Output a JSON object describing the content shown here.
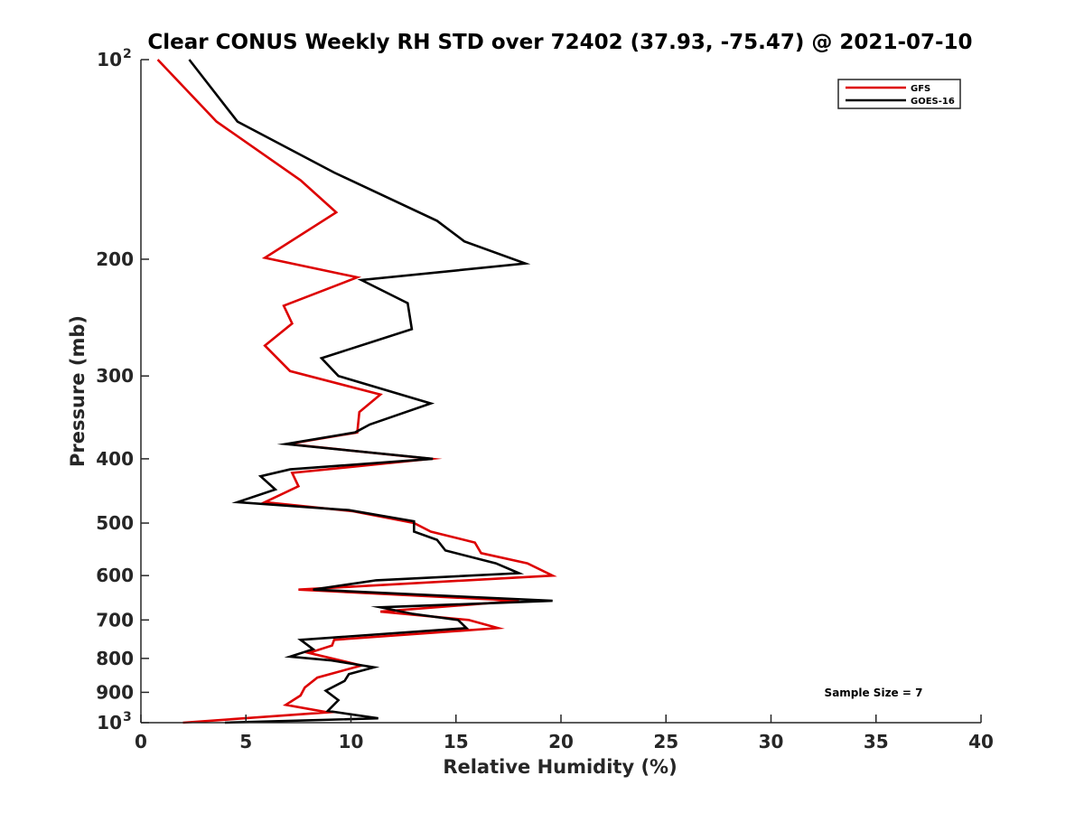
{
  "chart_data": {
    "type": "line",
    "title": "Clear CONUS Weekly RH STD over 72402 (37.93, -75.47) @ 2021-07-10",
    "xlabel": "Relative Humidity (%)",
    "ylabel": "Pressure (mb)",
    "xlim": [
      0,
      40
    ],
    "ylim": [
      100,
      1000
    ],
    "yscale": "log",
    "y_reversed": true,
    "x_ticks": [
      0,
      5,
      10,
      15,
      20,
      25,
      30,
      35,
      40
    ],
    "x_tick_labels": [
      "0",
      "5",
      "10",
      "15",
      "20",
      "25",
      "30",
      "35",
      "40"
    ],
    "y_ticks": [
      {
        "value": 100,
        "base": "10",
        "exp": "2"
      },
      {
        "value": 200,
        "label": "200"
      },
      {
        "value": 300,
        "label": "300"
      },
      {
        "value": 400,
        "label": "400"
      },
      {
        "value": 500,
        "label": "500"
      },
      {
        "value": 600,
        "label": "600"
      },
      {
        "value": 700,
        "label": "700"
      },
      {
        "value": 800,
        "label": "800"
      },
      {
        "value": 900,
        "label": "900"
      },
      {
        "value": 1000,
        "base": "10",
        "exp": "3"
      }
    ],
    "legend_position": "top-right",
    "annotation": "Sample Size = 7",
    "series": [
      {
        "name": "GFS",
        "color": "#dd0000",
        "points": [
          [
            0.8,
            100
          ],
          [
            3.6,
            124
          ],
          [
            7.6,
            152
          ],
          [
            9.3,
            170
          ],
          [
            5.9,
            199
          ],
          [
            10.3,
            213
          ],
          [
            6.8,
            235
          ],
          [
            7.2,
            250
          ],
          [
            5.9,
            270
          ],
          [
            7.1,
            295
          ],
          [
            11.4,
            320
          ],
          [
            10.4,
            340
          ],
          [
            10.3,
            365
          ],
          [
            7.0,
            380
          ],
          [
            13.8,
            400
          ],
          [
            7.2,
            420
          ],
          [
            7.5,
            440
          ],
          [
            5.9,
            465
          ],
          [
            10.1,
            480
          ],
          [
            13.0,
            500
          ],
          [
            13.8,
            515
          ],
          [
            15.9,
            535
          ],
          [
            16.2,
            555
          ],
          [
            18.4,
            575
          ],
          [
            19.6,
            600
          ],
          [
            7.5,
            630
          ],
          [
            18.0,
            655
          ],
          [
            11.4,
            680
          ],
          [
            15.6,
            700
          ],
          [
            17.0,
            720
          ],
          [
            9.2,
            750
          ],
          [
            9.1,
            765
          ],
          [
            8.0,
            785
          ],
          [
            10.5,
            820
          ],
          [
            8.4,
            855
          ],
          [
            7.8,
            885
          ],
          [
            7.6,
            910
          ],
          [
            6.9,
            940
          ],
          [
            8.9,
            965
          ],
          [
            2.0,
            1000
          ]
        ]
      },
      {
        "name": "GOES-16",
        "color": "#000000",
        "points": [
          [
            2.3,
            100
          ],
          [
            4.6,
            124
          ],
          [
            9.2,
            148
          ],
          [
            14.1,
            175
          ],
          [
            15.4,
            188
          ],
          [
            18.3,
            203
          ],
          [
            10.5,
            215
          ],
          [
            12.7,
            233
          ],
          [
            12.9,
            255
          ],
          [
            8.6,
            282
          ],
          [
            9.4,
            300
          ],
          [
            13.8,
            330
          ],
          [
            10.9,
            355
          ],
          [
            10.2,
            365
          ],
          [
            6.9,
            380
          ],
          [
            13.9,
            400
          ],
          [
            7.1,
            415
          ],
          [
            5.7,
            425
          ],
          [
            6.4,
            445
          ],
          [
            4.6,
            465
          ],
          [
            9.9,
            478
          ],
          [
            13.0,
            497
          ],
          [
            13.0,
            515
          ],
          [
            14.1,
            530
          ],
          [
            14.5,
            550
          ],
          [
            16.9,
            575
          ],
          [
            18.0,
            595
          ],
          [
            11.2,
            610
          ],
          [
            8.2,
            630
          ],
          [
            19.6,
            655
          ],
          [
            11.4,
            670
          ],
          [
            12.9,
            685
          ],
          [
            15.1,
            700
          ],
          [
            15.5,
            720
          ],
          [
            7.6,
            750
          ],
          [
            8.2,
            775
          ],
          [
            7.1,
            795
          ],
          [
            9.0,
            805
          ],
          [
            11.1,
            825
          ],
          [
            9.9,
            845
          ],
          [
            9.7,
            865
          ],
          [
            8.8,
            895
          ],
          [
            9.4,
            925
          ],
          [
            8.9,
            960
          ],
          [
            11.3,
            985
          ],
          [
            4.0,
            1000
          ]
        ]
      }
    ]
  }
}
